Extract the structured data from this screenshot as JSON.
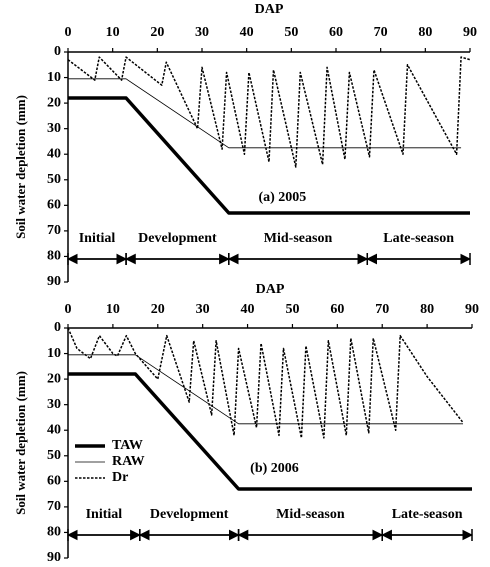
{
  "chart_data": [
    {
      "type": "line",
      "xlabel": "DAP",
      "ylabel": "Soil water depletion (mm)",
      "annotation": "(a) 2005",
      "xlim": [
        0,
        90
      ],
      "xticks": [
        0,
        10,
        20,
        30,
        40,
        50,
        60,
        70,
        80,
        90
      ],
      "ylim": [
        0,
        90
      ],
      "yticks": [
        0,
        10,
        20,
        30,
        40,
        50,
        60,
        70,
        80,
        90
      ],
      "invert_y": true,
      "series": [
        {
          "color": "#000000",
          "width": 3.5,
          "dash": false,
          "x": [
            0,
            13,
            36,
            90
          ],
          "values": [
            18,
            18,
            63,
            63
          ]
        },
        {
          "color": "#000000",
          "width": 0.8,
          "dash": false,
          "x": [
            0,
            13,
            36,
            88
          ],
          "values": [
            10.5,
            10.5,
            37.5,
            37.5
          ]
        },
        {
          "color": "#000000",
          "width": 1.5,
          "dash": true,
          "x": [
            0,
            6,
            7,
            12,
            13,
            21,
            22,
            29,
            30,
            34.5,
            35.5,
            39.5,
            40.5,
            45,
            46,
            51,
            52,
            57,
            58,
            62,
            63,
            67.5,
            68.5,
            75,
            76,
            87,
            88,
            90
          ],
          "values": [
            3,
            11,
            2,
            11,
            2,
            13,
            4,
            30,
            6,
            38,
            8,
            40,
            8,
            43,
            7,
            45,
            8,
            44,
            6,
            42,
            8,
            41,
            7,
            40,
            5,
            40,
            2,
            3
          ]
        }
      ],
      "stages": [
        {
          "label": "Initial",
          "start": 0,
          "end": 13
        },
        {
          "label": "Development",
          "start": 13,
          "end": 36
        },
        {
          "label": "Mid-season",
          "start": 36,
          "end": 67
        },
        {
          "label": "Late-season",
          "start": 67,
          "end": 90
        }
      ]
    },
    {
      "type": "line",
      "xlabel": "DAP",
      "ylabel": "Soil water depletion (mm)",
      "annotation": "(b) 2006",
      "xlim": [
        0,
        90
      ],
      "xticks": [
        0,
        10,
        20,
        30,
        40,
        50,
        60,
        70,
        80,
        90
      ],
      "ylim": [
        0,
        90
      ],
      "yticks": [
        0,
        10,
        20,
        30,
        40,
        50,
        60,
        70,
        80,
        90
      ],
      "invert_y": true,
      "legend": "left",
      "series": [
        {
          "name": "TAW",
          "color": "#000000",
          "width": 3.5,
          "dash": false,
          "x": [
            0,
            15,
            38,
            90
          ],
          "values": [
            18,
            18,
            63,
            63
          ]
        },
        {
          "name": "RAW",
          "color": "#000000",
          "width": 0.8,
          "dash": false,
          "x": [
            0,
            15,
            38,
            88
          ],
          "values": [
            10.5,
            10.5,
            37.5,
            37.5
          ]
        },
        {
          "name": "Dr",
          "color": "#000000",
          "width": 1.5,
          "dash": true,
          "x": [
            0,
            2,
            5,
            7,
            10,
            11,
            13,
            15,
            20,
            22,
            27,
            28,
            32,
            33,
            37,
            38,
            42,
            43,
            47,
            48,
            52,
            53,
            57,
            58,
            62,
            63,
            67,
            68,
            73,
            74,
            80,
            88
          ],
          "values": [
            0,
            8,
            12,
            3,
            10,
            11,
            3,
            10,
            20,
            3,
            29,
            5,
            34,
            5,
            42,
            8,
            39,
            6,
            42,
            8,
            43,
            7,
            43,
            5,
            42,
            4,
            41,
            4,
            40,
            3,
            19,
            37
          ]
        }
      ],
      "stages": [
        {
          "label": "Initial",
          "start": 0,
          "end": 16
        },
        {
          "label": "Development",
          "start": 16,
          "end": 38
        },
        {
          "label": "Mid-season",
          "start": 38,
          "end": 70
        },
        {
          "label": "Late-season",
          "start": 70,
          "end": 90
        }
      ]
    }
  ]
}
